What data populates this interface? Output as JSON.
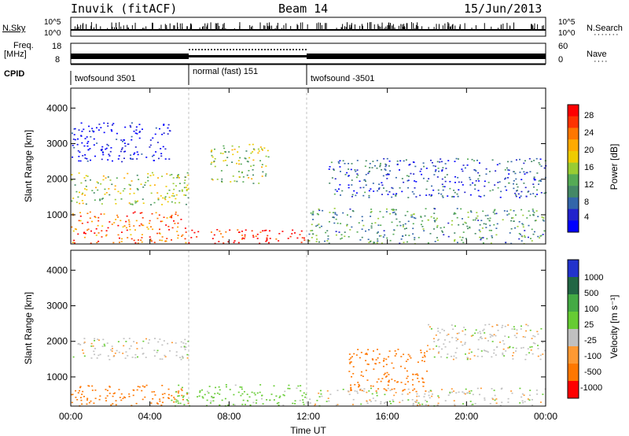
{
  "header": {
    "station": "Inuvik (fitACF)",
    "beam": "Beam 14",
    "date": "15/Jun/2013"
  },
  "top_panels": {
    "nsky_label": "N.Sky",
    "nsearch_label": "N.Search",
    "nsky_ticks": [
      "10^5",
      "10^0"
    ],
    "nsearch_ticks": [
      "10^5",
      "10^0"
    ],
    "freq_label_1": "Freq.",
    "freq_label_2": "[MHz]",
    "freq_ticks": [
      "18",
      "8"
    ],
    "nave_label": "Nave",
    "nave_ticks": [
      "60",
      "0"
    ],
    "cpid_label": "CPID",
    "cpid_segments": [
      {
        "name": "twofsound 3501",
        "start_hour": 0,
        "end_hour": 6
      },
      {
        "name": "normal (fast) 151",
        "start_hour": 6,
        "end_hour": 12
      },
      {
        "name": "twofsound -3501",
        "start_hour": 12,
        "end_hour": 24
      }
    ]
  },
  "chart_data": [
    {
      "type": "heatmap",
      "title": "",
      "xlabel": "",
      "ylabel": "Slant Range [km]",
      "xlim": [
        0,
        24
      ],
      "ylim": [
        180,
        4560
      ],
      "yticks": [
        "1000",
        "2000",
        "3000",
        "4000"
      ],
      "colorbar": {
        "label": "Power [dB]",
        "ticks": [
          "28",
          "24",
          "20",
          "16",
          "12",
          "8",
          "4"
        ],
        "colors": [
          "#ff0000",
          "#ff3300",
          "#ff7700",
          "#ffaa00",
          "#eecc00",
          "#99cc33",
          "#55aa55",
          "#448866",
          "#3366aa",
          "#2222cc",
          "#0000ff"
        ]
      },
      "regions": [
        {
          "t0": 0,
          "t1": 6,
          "r0": 200,
          "r1": 1100,
          "value": 24
        },
        {
          "t0": 6,
          "t1": 12,
          "r0": 200,
          "r1": 600,
          "value": 28
        },
        {
          "t0": 12,
          "t1": 24,
          "r0": 200,
          "r1": 1200,
          "value": 12
        },
        {
          "t0": 0,
          "t1": 6,
          "r0": 1300,
          "r1": 2200,
          "value": 16
        },
        {
          "t0": 13,
          "t1": 24,
          "r0": 1500,
          "r1": 2600,
          "value": 8
        },
        {
          "t0": 0,
          "t1": 5,
          "r0": 2500,
          "r1": 3600,
          "value": 4
        },
        {
          "t0": 7,
          "t1": 10,
          "r0": 1900,
          "r1": 3000,
          "value": 16
        }
      ]
    },
    {
      "type": "heatmap",
      "title": "",
      "xlabel": "Time UT",
      "ylabel": "Slant Range [km]",
      "xlim": [
        0,
        24
      ],
      "ylim": [
        180,
        4560
      ],
      "xticks": [
        "00:00",
        "04:00",
        "08:00",
        "12:00",
        "16:00",
        "20:00",
        "00:00"
      ],
      "yticks": [
        "1000",
        "2000",
        "3000",
        "4000"
      ],
      "colorbar": {
        "label": "Velocity [m s⁻¹]",
        "ticks": [
          "1000",
          "500",
          "100",
          "25",
          "-25",
          "-100",
          "-500",
          "-1000"
        ],
        "colors": [
          "#2233cc",
          "#226644",
          "#44aa44",
          "#66cc33",
          "#c0c0c0",
          "#ff9933",
          "#ff7700",
          "#ff0000"
        ]
      },
      "regions": [
        {
          "t0": 0,
          "t1": 6,
          "r0": 200,
          "r1": 800,
          "value": -300
        },
        {
          "t0": 5,
          "t1": 12,
          "r0": 200,
          "r1": 800,
          "value": 60
        },
        {
          "t0": 12,
          "t1": 24,
          "r0": 200,
          "r1": 700,
          "value": 0
        },
        {
          "t0": 0,
          "t1": 6,
          "r0": 1500,
          "r1": 2100,
          "value": 0
        },
        {
          "t0": 14,
          "t1": 18,
          "r0": 600,
          "r1": 1800,
          "value": -300
        },
        {
          "t0": 18,
          "t1": 24,
          "r0": 1500,
          "r1": 2500,
          "value": 0
        }
      ]
    }
  ]
}
